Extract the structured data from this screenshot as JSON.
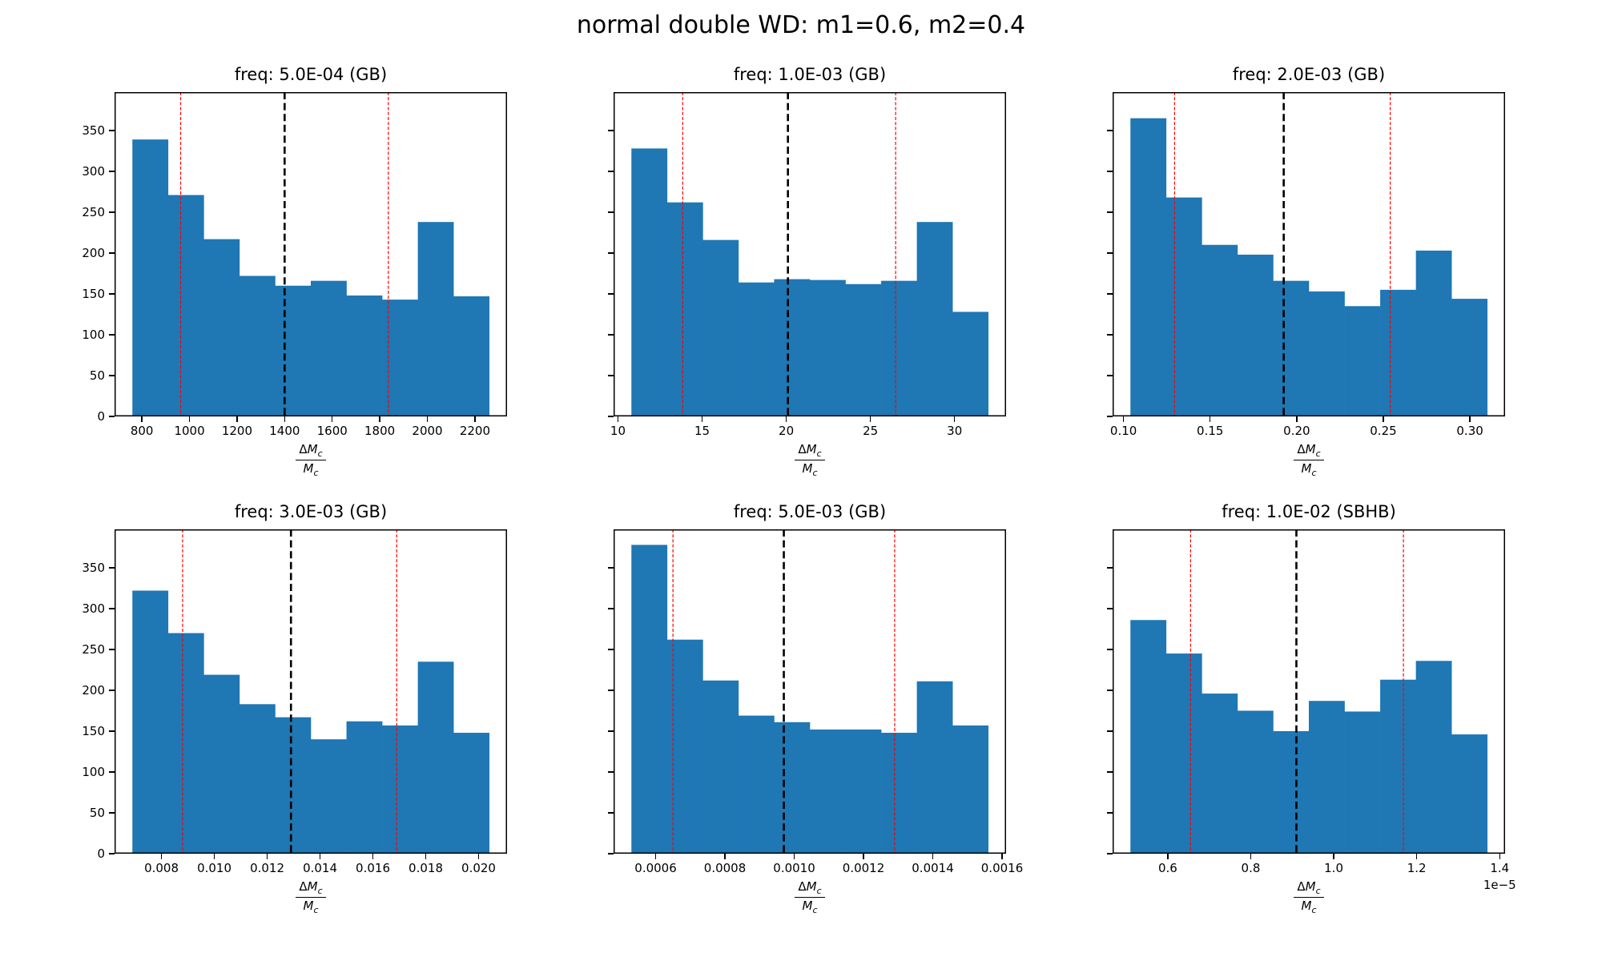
{
  "figure": {
    "title": "normal double WD: m1=0.6, m2=0.4",
    "background": "#ffffff"
  },
  "colors": {
    "bar": "#1f77b4",
    "percentile_line": "#ff0000",
    "median_line": "#000000",
    "frame": "#000000"
  },
  "xlabel": {
    "delta": "Δ",
    "mass_symbol": "M",
    "subscript": "c"
  },
  "y_axis": {
    "tick_values": [
      0,
      50,
      100,
      150,
      200,
      250,
      300,
      350
    ],
    "limit": [
      0,
      397
    ]
  },
  "chart_data": [
    {
      "type": "bar",
      "title": "freq: 5.0E-04 (GB)",
      "bins": {
        "start": 760,
        "end": 2260,
        "count": 10
      },
      "values": [
        339,
        271,
        217,
        172,
        160,
        166,
        148,
        143,
        238,
        147
      ],
      "x_tick_values": [
        800,
        1000,
        1200,
        1400,
        1600,
        1800,
        2000,
        2200
      ],
      "x_tick_labels": [
        "800",
        "1000",
        "1200",
        "1400",
        "1600",
        "1800",
        "2000",
        "2200"
      ],
      "vlines": {
        "lower_percentile": 963,
        "median": 1400,
        "upper_percentile": 1836
      },
      "y_tick_labels_visible": true,
      "x_offset_label": null
    },
    {
      "type": "bar",
      "title": "freq: 1.0E-03 (GB)",
      "bins": {
        "start": 10.8,
        "end": 32.0,
        "count": 10
      },
      "values": [
        328,
        262,
        216,
        164,
        168,
        167,
        162,
        166,
        238,
        128
      ],
      "x_tick_values": [
        10,
        15,
        20,
        25,
        30
      ],
      "x_tick_labels": [
        "10",
        "15",
        "20",
        "25",
        "30"
      ],
      "vlines": {
        "lower_percentile": 13.85,
        "median": 20.1,
        "upper_percentile": 26.5
      },
      "y_tick_labels_visible": false,
      "x_offset_label": null
    },
    {
      "type": "bar",
      "title": "freq: 2.0E-03 (GB)",
      "bins": {
        "start": 0.104,
        "end": 0.31,
        "count": 10
      },
      "values": [
        365,
        268,
        210,
        198,
        166,
        153,
        135,
        155,
        203,
        144
      ],
      "x_tick_values": [
        0.1,
        0.15,
        0.2,
        0.25,
        0.3
      ],
      "x_tick_labels": [
        "0.10",
        "0.15",
        "0.20",
        "0.25",
        "0.30"
      ],
      "vlines": {
        "lower_percentile": 0.1295,
        "median": 0.1925,
        "upper_percentile": 0.254
      },
      "y_tick_labels_visible": false,
      "x_offset_label": null
    },
    {
      "type": "bar",
      "title": "freq: 3.0E-03 (GB)",
      "bins": {
        "start": 0.0069,
        "end": 0.0204,
        "count": 10
      },
      "values": [
        322,
        270,
        219,
        183,
        167,
        140,
        162,
        157,
        235,
        148
      ],
      "x_tick_values": [
        0.008,
        0.01,
        0.012,
        0.014,
        0.016,
        0.018,
        0.02
      ],
      "x_tick_labels": [
        "0.008",
        "0.010",
        "0.012",
        "0.014",
        "0.016",
        "0.018",
        "0.020"
      ],
      "vlines": {
        "lower_percentile": 0.0088,
        "median": 0.0129,
        "upper_percentile": 0.0169
      },
      "y_tick_labels_visible": true,
      "x_offset_label": null
    },
    {
      "type": "bar",
      "title": "freq: 5.0E-03 (GB)",
      "bins": {
        "start": 0.00053,
        "end": 0.00156,
        "count": 10
      },
      "values": [
        378,
        262,
        212,
        169,
        161,
        152,
        152,
        148,
        211,
        157
      ],
      "x_tick_values": [
        0.0006,
        0.0008,
        0.001,
        0.0012,
        0.0014,
        0.0016
      ],
      "x_tick_labels": [
        "0.0006",
        "0.0008",
        "0.0010",
        "0.0012",
        "0.0014",
        "0.0016"
      ],
      "vlines": {
        "lower_percentile": 0.00065,
        "median": 0.00097,
        "upper_percentile": 0.00129
      },
      "y_tick_labels_visible": false,
      "x_offset_label": null
    },
    {
      "type": "bar",
      "title": "freq: 1.0E-02 (SBHB)",
      "bins": {
        "start": 0.51,
        "end": 1.37,
        "count": 10
      },
      "values": [
        286,
        245,
        196,
        175,
        150,
        187,
        174,
        213,
        236,
        146
      ],
      "x_tick_values": [
        0.6,
        0.8,
        1.0,
        1.2,
        1.4
      ],
      "x_tick_labels": [
        "0.6",
        "0.8",
        "1.0",
        "1.2",
        "1.4"
      ],
      "vlines": {
        "lower_percentile": 0.655,
        "median": 0.91,
        "upper_percentile": 1.168
      },
      "y_tick_labels_visible": false,
      "x_offset_label": "1e−5"
    }
  ]
}
